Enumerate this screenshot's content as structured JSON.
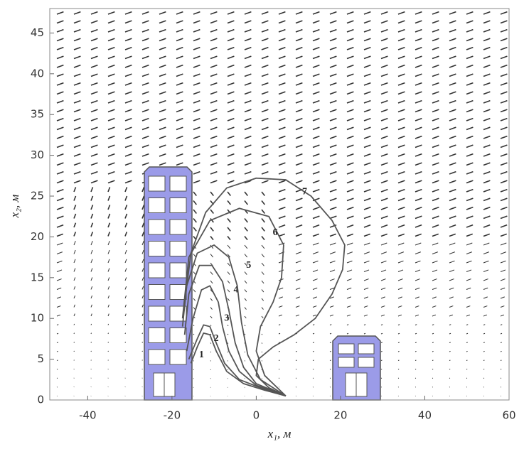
{
  "chart_data": {
    "type": "contour",
    "xlabel": "x₁, м",
    "ylabel": "x₂, м",
    "xlim": [
      -49,
      60
    ],
    "xticks": [
      -40,
      -20,
      0,
      20,
      40,
      60
    ],
    "ylim": [
      0,
      48
    ],
    "yticks": [
      0,
      5,
      10,
      15,
      20,
      25,
      30,
      35,
      40,
      45
    ],
    "color": "#555555",
    "series": [
      {
        "name": "1",
        "x": [
          7,
          2,
          -3,
          -7,
          -9.5,
          -11,
          -12.5,
          -14,
          -15.5
        ],
        "y": [
          0.5,
          1.2,
          2,
          3.5,
          6,
          8,
          8.2,
          6.5,
          4.5
        ]
      },
      {
        "name": "2",
        "x": [
          7,
          1,
          -4,
          -7.5,
          -9.5,
          -11,
          -12.5,
          -14,
          -16
        ],
        "y": [
          0.5,
          1.5,
          2.5,
          4.5,
          7,
          9,
          9.2,
          7.5,
          5
        ]
      },
      {
        "name": "3",
        "x": [
          7,
          0,
          -4,
          -6.5,
          -8,
          -9,
          -11,
          -13,
          -15,
          -16.5
        ],
        "y": [
          0.5,
          1.8,
          3.5,
          6,
          9,
          12,
          14,
          13.5,
          10,
          6
        ]
      },
      {
        "name": "4",
        "x": [
          7,
          0,
          -3,
          -5,
          -6.5,
          -8,
          -10.5,
          -13.5,
          -16,
          -17
        ],
        "y": [
          0.5,
          2,
          4,
          7,
          11,
          14.5,
          16.5,
          16.5,
          13,
          8
        ]
      },
      {
        "name": "5",
        "x": [
          7,
          1,
          -2,
          -3.5,
          -4.5,
          -6.5,
          -10,
          -14,
          -16.5,
          -17.5
        ],
        "y": [
          0.5,
          2.5,
          5.5,
          9.5,
          14,
          17.5,
          19,
          18,
          14,
          9
        ]
      },
      {
        "name": "6",
        "x": [
          7,
          2,
          0,
          1,
          4,
          6,
          6.5,
          3,
          -4,
          -11,
          -16,
          -17.5
        ],
        "y": [
          0.5,
          3,
          6,
          9,
          12,
          15,
          19,
          22.5,
          23.5,
          22,
          17.5,
          10
        ]
      },
      {
        "name": "7",
        "x": [
          7,
          3,
          0,
          0.5,
          4,
          9,
          14,
          18,
          20.5,
          21,
          18,
          13,
          7,
          0,
          -7,
          -12,
          -15.5,
          -17
        ],
        "y": [
          0.5,
          1.5,
          3,
          5,
          6.5,
          8,
          10,
          13,
          16,
          19,
          22,
          25,
          27,
          27.2,
          26,
          23,
          18,
          12
        ]
      }
    ]
  }
}
